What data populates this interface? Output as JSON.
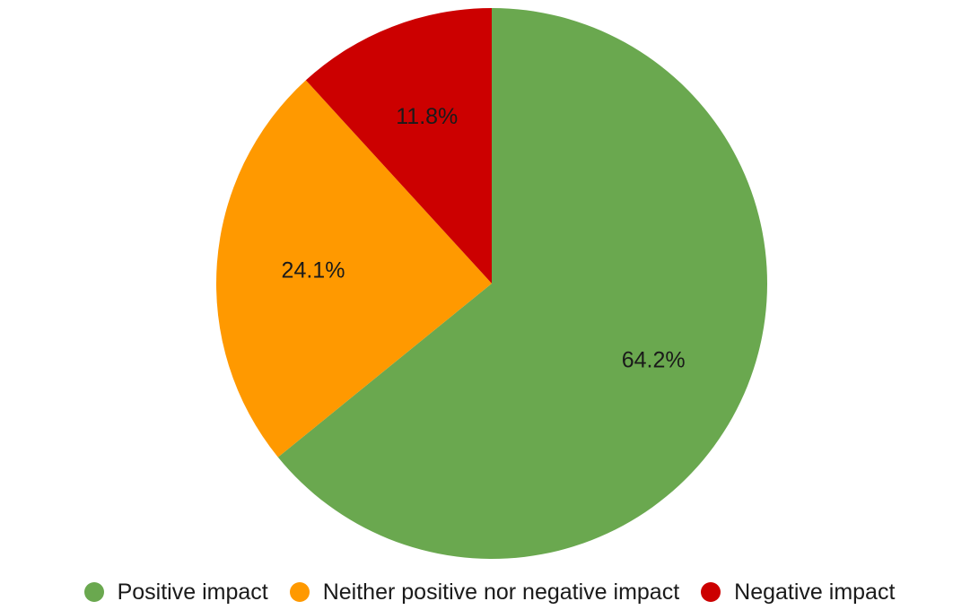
{
  "chart_data": {
    "type": "pie",
    "title": "",
    "legend_position": "bottom",
    "slices": [
      {
        "name": "Positive impact",
        "value": 64.2,
        "label": "64.2%",
        "color": "#6aa84f"
      },
      {
        "name": "Neither positive nor negative impact",
        "value": 24.1,
        "label": "24.1%",
        "color": "#ff9900"
      },
      {
        "name": "Negative impact",
        "value": 11.8,
        "label": "11.8%",
        "color": "#cc0000"
      }
    ]
  }
}
